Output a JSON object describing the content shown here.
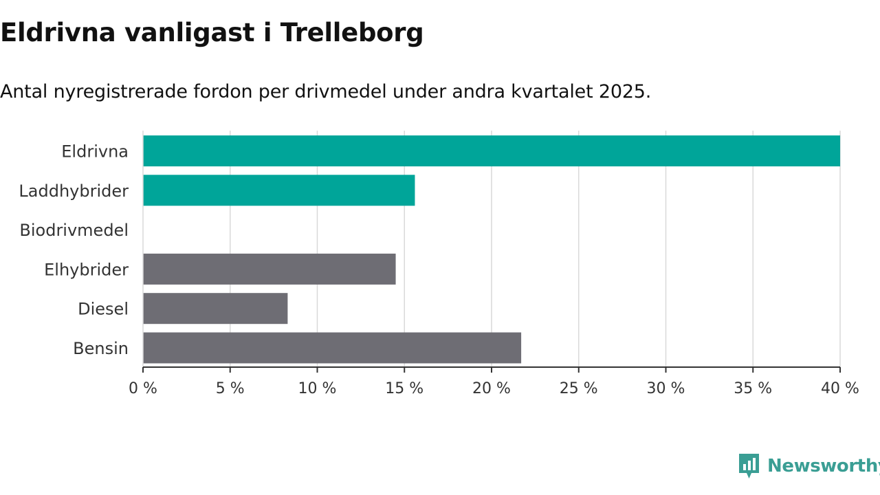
{
  "header": {
    "title": "Eldrivna vanligast i Trelleborg",
    "subtitle": "Antal nyregistrerade fordon per drivmedel under andra kvartalet 2025."
  },
  "branding": {
    "logo_text": "Newsworthy",
    "logo_icon": "bar-chart-speech-bubble-icon",
    "logo_color": "#3a9e94"
  },
  "chart_data": {
    "type": "bar",
    "orientation": "horizontal",
    "categories": [
      "Eldrivna",
      "Laddhybrider",
      "Biodrivmedel",
      "Elhybrider",
      "Diesel",
      "Bensin"
    ],
    "values": [
      40.0,
      15.6,
      0,
      14.5,
      8.3,
      21.7
    ],
    "colors": [
      "#00a599",
      "#00a599",
      "#00a599",
      "#6e6d74",
      "#6e6d74",
      "#6e6d74"
    ],
    "xlim": [
      0,
      40
    ],
    "ticks": [
      0,
      5,
      10,
      15,
      20,
      25,
      30,
      35,
      40
    ],
    "tick_labels": [
      "0 %",
      "5 %",
      "10 %",
      "15 %",
      "20 %",
      "25 %",
      "30 %",
      "35 %",
      "40 %"
    ],
    "grid": true,
    "xlabel": "",
    "ylabel": ""
  }
}
